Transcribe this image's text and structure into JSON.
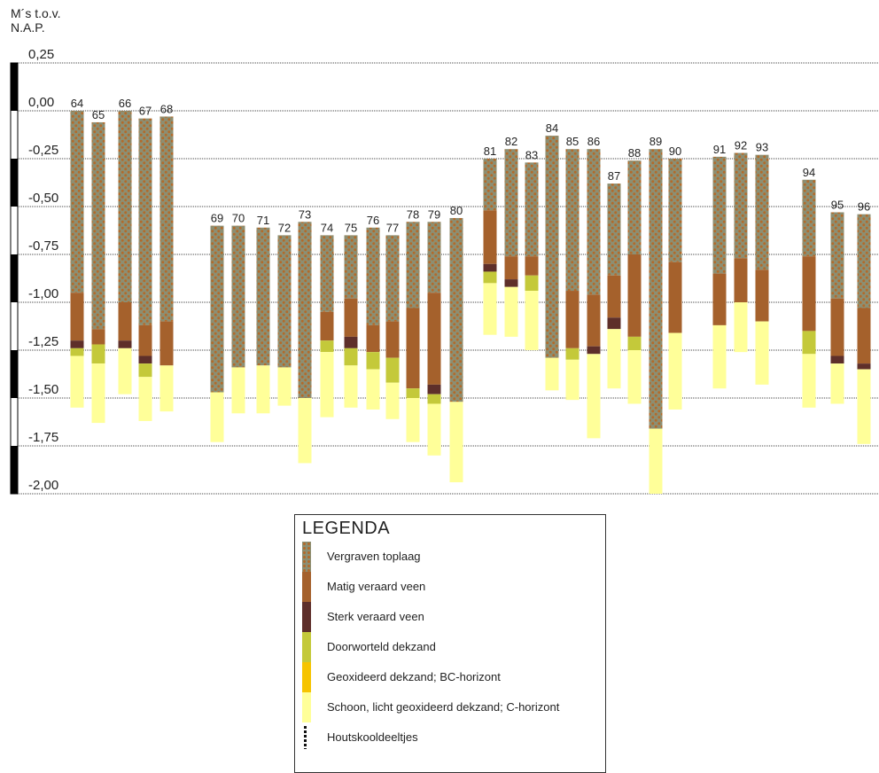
{
  "chart_data": {
    "type": "bar",
    "subtype": "stacked-range (boring profiles)",
    "ylabel": "M´s  t.o.v.\nN.A.P.",
    "ylabel_lines": [
      "M´s  t.o.v.",
      "N.A.P."
    ],
    "ylim": [
      -2.0,
      0.25
    ],
    "yticks": [
      0.25,
      0.0,
      -0.25,
      -0.5,
      -0.75,
      -1.0,
      -1.25,
      -1.5,
      -1.75,
      -2.0
    ],
    "ytick_labels": [
      "0,25",
      "0,00",
      "-0,25",
      "-0,50",
      "-0,75",
      "-1,00",
      "-1,25",
      "-1,50",
      "-1,75",
      "-2,00"
    ],
    "grid": true,
    "legend_title": "LEGENDA",
    "layer_types": [
      {
        "key": "vergraven",
        "label": "Vergraven toplaag",
        "color": "#8c8f73",
        "dot_color": "#b36a2a",
        "pattern": "dots"
      },
      {
        "key": "matig",
        "label": "Matig veraard veen",
        "color": "#a5612c"
      },
      {
        "key": "sterk",
        "label": "Sterk veraard veen",
        "color": "#5e2f2a"
      },
      {
        "key": "doorworteld",
        "label": "Doorworteld dekzand",
        "color": "#c4c93a"
      },
      {
        "key": "geoxideerd",
        "label": "Geoxideerd dekzand; BC-horizont",
        "color": "#f6c400"
      },
      {
        "key": "schoon",
        "label": "Schoon, licht geoxideerd dekzand; C-horizont",
        "color": "#ffff99"
      },
      {
        "key": "houtskool",
        "label": "Houtskooldeeltjes",
        "color": "#111111",
        "pattern": "dashed-line"
      }
    ],
    "boreholes": [
      {
        "id": "64",
        "layers": [
          [
            "vergraven",
            0.0,
            -0.95
          ],
          [
            "matig",
            -0.95,
            -1.2
          ],
          [
            "sterk",
            -1.2,
            -1.24
          ],
          [
            "doorworteld",
            -1.24,
            -1.28
          ],
          [
            "schoon",
            -1.28,
            -1.55
          ]
        ]
      },
      {
        "id": "65",
        "layers": [
          [
            "vergraven",
            -0.06,
            -1.14
          ],
          [
            "matig",
            -1.14,
            -1.22
          ],
          [
            "doorworteld",
            -1.22,
            -1.32
          ],
          [
            "schoon",
            -1.32,
            -1.63
          ]
        ]
      },
      {
        "id": "66",
        "layers": [
          [
            "vergraven",
            0.0,
            -1.0
          ],
          [
            "matig",
            -1.0,
            -1.2
          ],
          [
            "sterk",
            -1.2,
            -1.24
          ],
          [
            "schoon",
            -1.24,
            -1.48
          ]
        ]
      },
      {
        "id": "67",
        "layers": [
          [
            "vergraven",
            -0.04,
            -1.12
          ],
          [
            "matig",
            -1.12,
            -1.28
          ],
          [
            "sterk",
            -1.28,
            -1.32
          ],
          [
            "doorworteld",
            -1.32,
            -1.39
          ],
          [
            "schoon",
            -1.39,
            -1.62
          ]
        ]
      },
      {
        "id": "68",
        "layers": [
          [
            "vergraven",
            -0.03,
            -1.1
          ],
          [
            "matig",
            -1.1,
            -1.33
          ],
          [
            "schoon",
            -1.33,
            -1.57
          ]
        ]
      },
      {
        "id": "69",
        "layers": [
          [
            "vergraven",
            -0.6,
            -1.47
          ],
          [
            "schoon",
            -1.47,
            -1.73
          ]
        ]
      },
      {
        "id": "70",
        "layers": [
          [
            "vergraven",
            -0.6,
            -1.34
          ],
          [
            "schoon",
            -1.34,
            -1.58
          ]
        ]
      },
      {
        "id": "71",
        "layers": [
          [
            "vergraven",
            -0.61,
            -1.33
          ],
          [
            "schoon",
            -1.33,
            -1.58
          ]
        ]
      },
      {
        "id": "72",
        "layers": [
          [
            "vergraven",
            -0.65,
            -1.34
          ],
          [
            "schoon",
            -1.34,
            -1.54
          ]
        ]
      },
      {
        "id": "73",
        "layers": [
          [
            "vergraven",
            -0.58,
            -1.5
          ],
          [
            "schoon",
            -1.5,
            -1.84
          ]
        ]
      },
      {
        "id": "74",
        "layers": [
          [
            "vergraven",
            -0.65,
            -1.05
          ],
          [
            "matig",
            -1.05,
            -1.2
          ],
          [
            "doorworteld",
            -1.2,
            -1.26
          ],
          [
            "schoon",
            -1.26,
            -1.6
          ]
        ]
      },
      {
        "id": "75",
        "layers": [
          [
            "vergraven",
            -0.65,
            -0.98
          ],
          [
            "matig",
            -0.98,
            -1.18
          ],
          [
            "sterk",
            -1.18,
            -1.24
          ],
          [
            "doorworteld",
            -1.24,
            -1.33
          ],
          [
            "schoon",
            -1.33,
            -1.55
          ]
        ]
      },
      {
        "id": "76",
        "layers": [
          [
            "vergraven",
            -0.61,
            -1.12
          ],
          [
            "matig",
            -1.12,
            -1.26
          ],
          [
            "doorworteld",
            -1.26,
            -1.35
          ],
          [
            "schoon",
            -1.35,
            -1.56
          ]
        ]
      },
      {
        "id": "77",
        "layers": [
          [
            "vergraven",
            -0.65,
            -1.1
          ],
          [
            "matig",
            -1.1,
            -1.29
          ],
          [
            "doorworteld",
            -1.29,
            -1.42
          ],
          [
            "schoon",
            -1.42,
            -1.61
          ]
        ]
      },
      {
        "id": "78",
        "layers": [
          [
            "vergraven",
            -0.58,
            -1.03
          ],
          [
            "matig",
            -1.03,
            -1.45
          ],
          [
            "doorworteld",
            -1.45,
            -1.5
          ],
          [
            "schoon",
            -1.5,
            -1.73
          ]
        ]
      },
      {
        "id": "79",
        "layers": [
          [
            "vergraven",
            -0.58,
            -0.95
          ],
          [
            "matig",
            -0.95,
            -1.43
          ],
          [
            "sterk",
            -1.43,
            -1.48
          ],
          [
            "doorworteld",
            -1.48,
            -1.53
          ],
          [
            "schoon",
            -1.53,
            -1.8
          ]
        ]
      },
      {
        "id": "80",
        "layers": [
          [
            "vergraven",
            -0.56,
            -1.52
          ],
          [
            "schoon",
            -1.52,
            -1.94
          ]
        ]
      },
      {
        "id": "81",
        "layers": [
          [
            "vergraven",
            -0.25,
            -0.52
          ],
          [
            "matig",
            -0.52,
            -0.8
          ],
          [
            "sterk",
            -0.8,
            -0.84
          ],
          [
            "doorworteld",
            -0.84,
            -0.9
          ],
          [
            "schoon",
            -0.9,
            -1.17
          ]
        ]
      },
      {
        "id": "82",
        "layers": [
          [
            "vergraven",
            -0.2,
            -0.76
          ],
          [
            "matig",
            -0.76,
            -0.88
          ],
          [
            "sterk",
            -0.88,
            -0.92
          ],
          [
            "schoon",
            -0.92,
            -1.18
          ]
        ]
      },
      {
        "id": "83",
        "layers": [
          [
            "vergraven",
            -0.27,
            -0.76
          ],
          [
            "matig",
            -0.76,
            -0.86
          ],
          [
            "doorworteld",
            -0.86,
            -0.94
          ],
          [
            "schoon",
            -0.94,
            -1.25
          ]
        ]
      },
      {
        "id": "84",
        "layers": [
          [
            "vergraven",
            -0.13,
            -1.29
          ],
          [
            "schoon",
            -1.29,
            -1.46
          ]
        ]
      },
      {
        "id": "85",
        "layers": [
          [
            "vergraven",
            -0.2,
            -0.94
          ],
          [
            "matig",
            -0.94,
            -1.24
          ],
          [
            "doorworteld",
            -1.24,
            -1.3
          ],
          [
            "schoon",
            -1.3,
            -1.51
          ]
        ]
      },
      {
        "id": "86",
        "layers": [
          [
            "vergraven",
            -0.2,
            -0.96
          ],
          [
            "matig",
            -0.96,
            -1.23
          ],
          [
            "sterk",
            -1.23,
            -1.27
          ],
          [
            "schoon",
            -1.27,
            -1.71
          ]
        ]
      },
      {
        "id": "87",
        "layers": [
          [
            "vergraven",
            -0.38,
            -0.86
          ],
          [
            "matig",
            -0.86,
            -1.08
          ],
          [
            "sterk",
            -1.08,
            -1.14
          ],
          [
            "schoon",
            -1.14,
            -1.45
          ]
        ]
      },
      {
        "id": "88",
        "layers": [
          [
            "vergraven",
            -0.26,
            -0.75
          ],
          [
            "matig",
            -0.75,
            -1.18
          ],
          [
            "doorworteld",
            -1.18,
            -1.25
          ],
          [
            "schoon",
            -1.25,
            -1.53
          ]
        ]
      },
      {
        "id": "89",
        "layers": [
          [
            "vergraven",
            -0.2,
            -1.66
          ],
          [
            "schoon",
            -1.66,
            -2.0
          ]
        ]
      },
      {
        "id": "90",
        "layers": [
          [
            "vergraven",
            -0.25,
            -0.79
          ],
          [
            "matig",
            -0.79,
            -1.16
          ],
          [
            "schoon",
            -1.16,
            -1.56
          ]
        ]
      },
      {
        "id": "91",
        "layers": [
          [
            "vergraven",
            -0.24,
            -0.85
          ],
          [
            "matig",
            -0.85,
            -1.12
          ],
          [
            "schoon",
            -1.12,
            -1.45
          ]
        ]
      },
      {
        "id": "92",
        "layers": [
          [
            "vergraven",
            -0.22,
            -0.77
          ],
          [
            "matig",
            -0.77,
            -1.0
          ],
          [
            "schoon",
            -1.0,
            -1.26
          ]
        ]
      },
      {
        "id": "93",
        "layers": [
          [
            "vergraven",
            -0.23,
            -0.83
          ],
          [
            "matig",
            -0.83,
            -1.1
          ],
          [
            "schoon",
            -1.1,
            -1.43
          ]
        ]
      },
      {
        "id": "94",
        "layers": [
          [
            "vergraven",
            -0.36,
            -0.76
          ],
          [
            "matig",
            -0.76,
            -1.15
          ],
          [
            "doorworteld",
            -1.15,
            -1.27
          ],
          [
            "schoon",
            -1.27,
            -1.55
          ]
        ]
      },
      {
        "id": "95",
        "layers": [
          [
            "vergraven",
            -0.53,
            -0.98
          ],
          [
            "matig",
            -0.98,
            -1.28
          ],
          [
            "sterk",
            -1.28,
            -1.32
          ],
          [
            "schoon",
            -1.32,
            -1.53
          ]
        ]
      },
      {
        "id": "96",
        "layers": [
          [
            "vergraven",
            -0.54,
            -1.03
          ],
          [
            "matig",
            -1.03,
            -1.32
          ],
          [
            "sterk",
            -1.32,
            -1.35
          ],
          [
            "schoon",
            -1.35,
            -1.74
          ]
        ]
      }
    ]
  }
}
